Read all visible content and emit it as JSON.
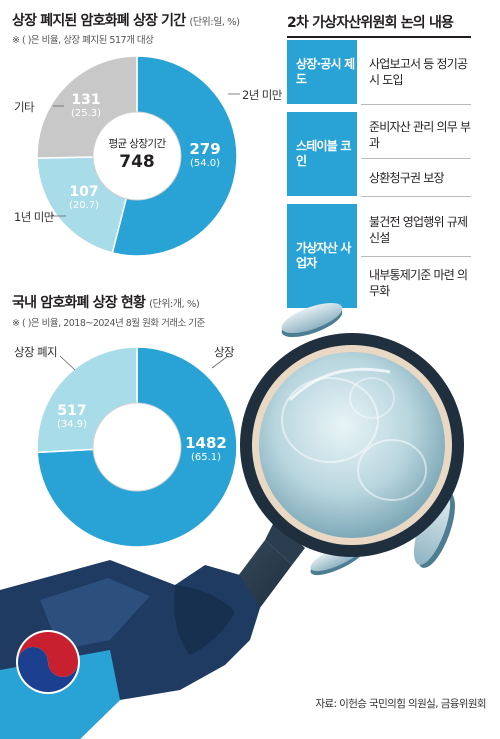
{
  "chart_data": [
    {
      "type": "pie",
      "title": "상장 폐지된 암호화폐 상장 기간",
      "unit_note": "(단위:일, %)",
      "footnote": "※ ( )은 비율, 상장 폐지된 517개 대상",
      "center_label": "평균 상장기간",
      "center_value": "748",
      "slices": [
        {
          "label": "2년 미만",
          "value": 279,
          "percent": 54.0,
          "value_text": "279",
          "percent_text": "(54.0)",
          "color": "#29a3d6"
        },
        {
          "label": "1년 미만",
          "value": 107,
          "percent": 20.7,
          "value_text": "107",
          "percent_text": "(20.7)",
          "color": "#a9dce9"
        },
        {
          "label": "기타",
          "value": 131,
          "percent": 25.3,
          "value_text": "131",
          "percent_text": "(25.3)",
          "color": "#c8c8c8"
        }
      ]
    },
    {
      "type": "pie",
      "title": "국내 암호화폐 상장 현황",
      "unit_note": "(단위:개, %)",
      "footnote": "※ ( )은 비율, 2018~2024년 8월 원화 거래소 기준",
      "slices": [
        {
          "label": "상장",
          "value": 1482,
          "percent": 65.1,
          "value_text": "1482",
          "percent_text": "(65.1)",
          "color": "#29a3d6"
        },
        {
          "label": "상장 폐지",
          "value": 517,
          "percent": 34.9,
          "value_text": "517",
          "percent_text": "(34.9)",
          "color": "#a9dce9"
        }
      ]
    }
  ],
  "regulation_panel": {
    "title": "2차 가상자산위원회 논의 내용",
    "rows": [
      {
        "tag": "상장·공시 제도",
        "items": [
          "사업보고서 등 정기공시 도입"
        ]
      },
      {
        "tag": "스테이블 코인",
        "items": [
          "준비자산 관리 의무 부과",
          "상환청구권 보장"
        ]
      },
      {
        "tag": "가상자산 사업자",
        "items": [
          "불건전 영업행위 규제 신설",
          "내부통제기준 마련 의무화"
        ]
      }
    ]
  },
  "source": "자료: 이헌승 국민의힘 의원실, 금융위원회",
  "colors": {
    "accent_blue": "#29a3d6",
    "light_blue": "#a9dce9",
    "gray": "#c8c8c8",
    "navy": "#123a5e",
    "hand": "#1f3b62"
  },
  "icons": [
    "magnifier-icon",
    "coin-icon",
    "hand-illustration",
    "government-emblem"
  ]
}
